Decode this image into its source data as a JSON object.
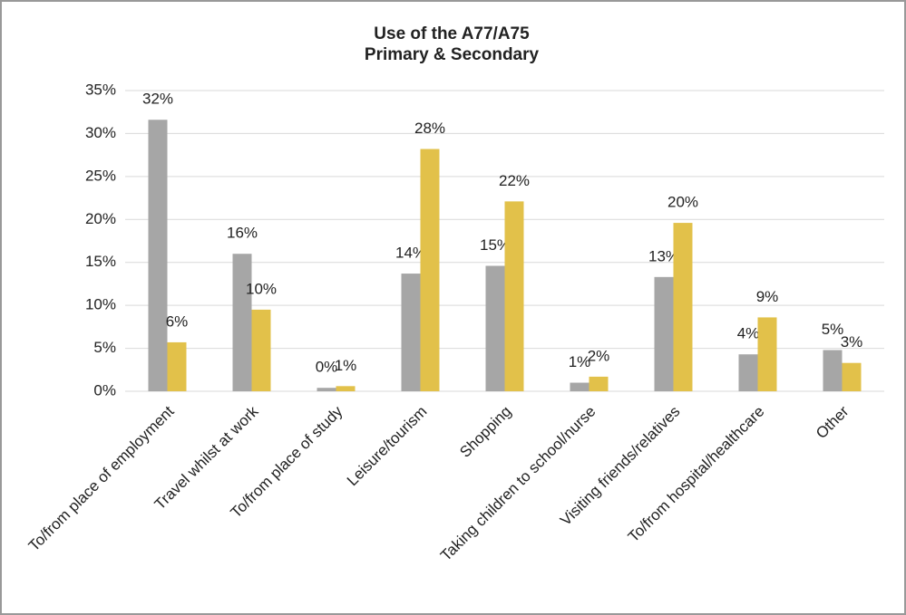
{
  "chart_data": {
    "type": "bar",
    "title": "Use of the A77/A75",
    "subtitle": "Primary & Secondary",
    "categories": [
      "To/from place of employment",
      "Travel whilst at work",
      "To/from place of study",
      "Leisure/tourism",
      "Shopping",
      "Taking children to school/nurse",
      "Visiting friends/relatives",
      "To/from hospital/healthcare",
      "Other"
    ],
    "series": [
      {
        "color": "#a6a6a6",
        "values": [
          31.6,
          16,
          0.4,
          13.7,
          14.6,
          1.0,
          13.3,
          4.3,
          4.8
        ],
        "value_labels": [
          "32%",
          "16%",
          "0%",
          "14%",
          "15%",
          "1%",
          "13%",
          "4%",
          "5%"
        ]
      },
      {
        "color": "#e2c14a",
        "values": [
          5.7,
          9.5,
          0.6,
          28.2,
          22.1,
          1.7,
          19.6,
          8.6,
          3.3
        ],
        "value_labels": [
          "6%",
          "10%",
          "1%",
          "28%",
          "22%",
          "2%",
          "20%",
          "9%",
          "3%"
        ]
      }
    ],
    "ylim": [
      0,
      35
    ],
    "yticks": [
      {
        "value": 0,
        "label": "0%"
      },
      {
        "value": 5,
        "label": "5%"
      },
      {
        "value": 10,
        "label": "10%"
      },
      {
        "value": 15,
        "label": "15%"
      },
      {
        "value": 20,
        "label": "20%"
      },
      {
        "value": 25,
        "label": "25%"
      },
      {
        "value": 30,
        "label": "30%"
      },
      {
        "value": 35,
        "label": "35%"
      }
    ],
    "grid": true
  }
}
